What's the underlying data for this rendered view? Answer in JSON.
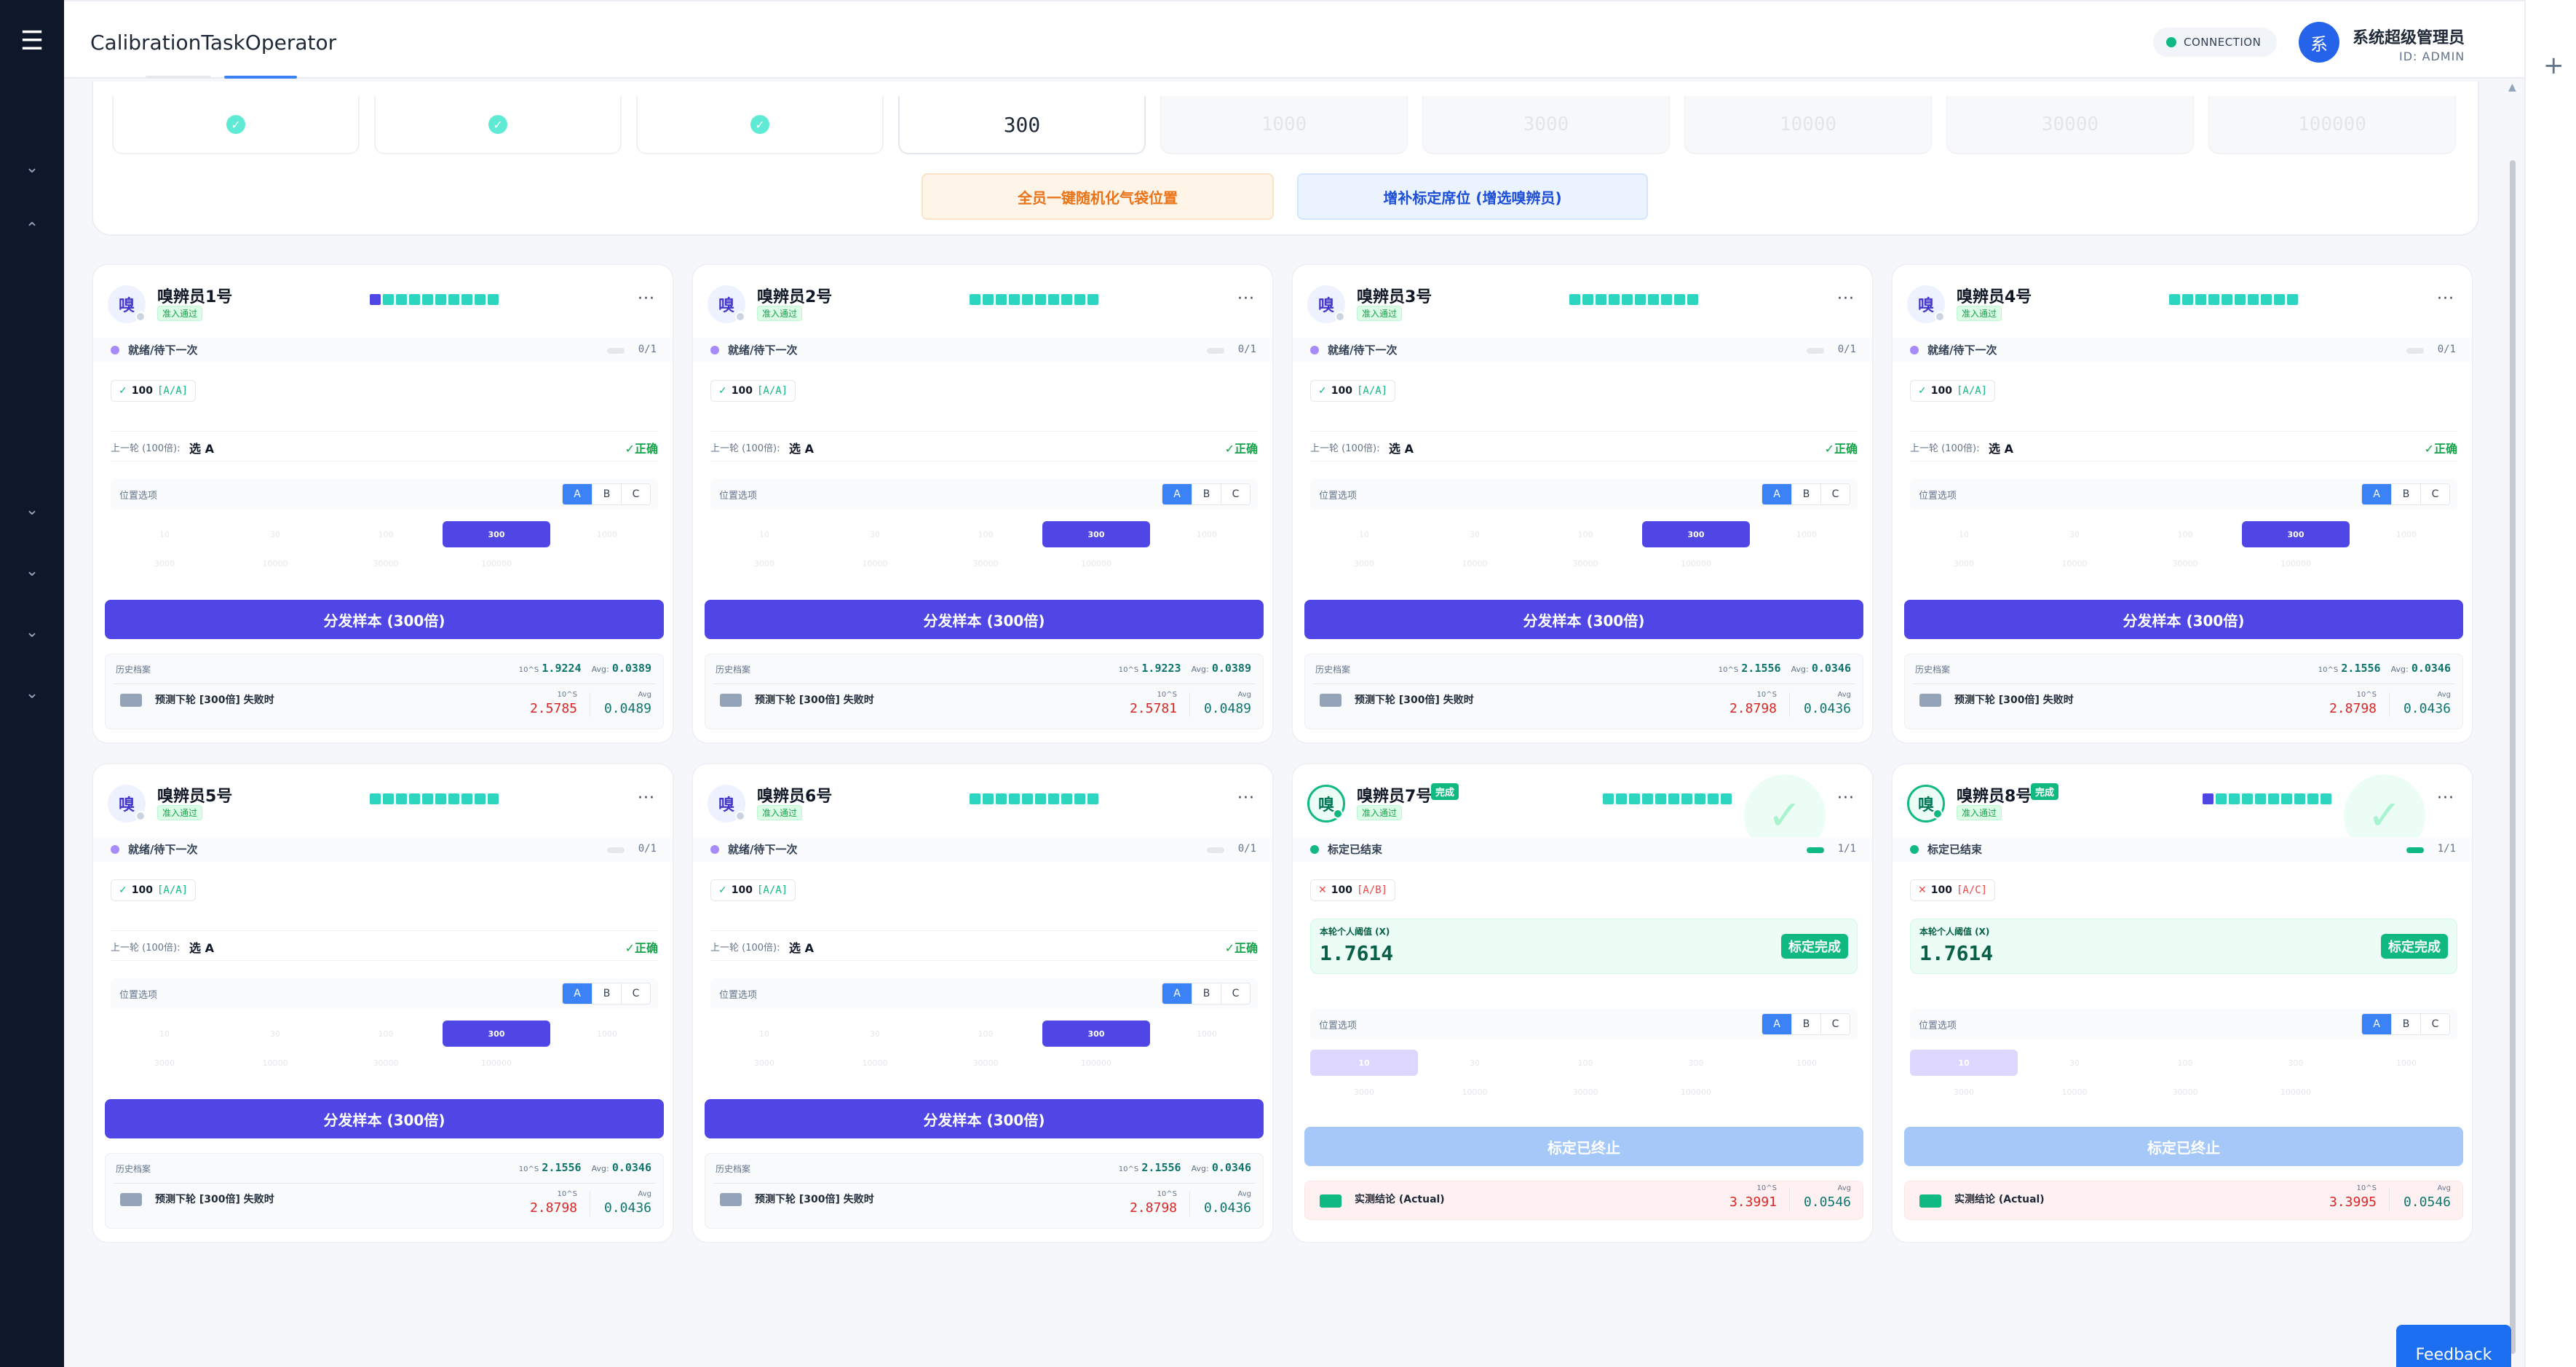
{
  "app": {
    "title": "CalibrationTaskOperator"
  },
  "header": {
    "connection": "CONNECTION",
    "user_avatar": "系",
    "user_name": "系统超级管理员",
    "user_id": "ID: ADMIN"
  },
  "steps": {
    "active": "300",
    "dim": [
      "1000",
      "3000",
      "10000",
      "30000",
      "100000"
    ]
  },
  "actions": {
    "randomize": "全员一键随机化气袋位置",
    "add_seat": "增补标定席位 (增选嗅辨员)"
  },
  "labels": {
    "prev_round": "上一轮 (100倍):",
    "position": "位置选项",
    "history": "历史档案",
    "predict": "预测下轮 [300倍] 失败时",
    "tenS": "10^S",
    "avg": "Avg:",
    "avg2": "Avg",
    "threshold": "本轮个人阈值 (X)",
    "actual": "实测结论 (Actual)",
    "calibrated": "标定完成",
    "done_tag": "完成",
    "stopped": "标定已终止",
    "pass": "准入通过",
    "more": "···",
    "check": "✓",
    "cross": "✕"
  },
  "multipliers": {
    "row1": [
      "10",
      "30",
      "100",
      "300",
      "1000"
    ],
    "row2": [
      "3000",
      "10000",
      "30000",
      "100000"
    ]
  },
  "panelists": [
    {
      "name": "嗅辨员1号",
      "status": "就绪/待下一次",
      "progress": "0/1",
      "result_val": "100",
      "result_pair": "[A/A]",
      "prev_pick": "选 A",
      "prev_ok": "✓正确",
      "dispatch": "分发样本 (300倍)",
      "hist_10s": "1.9224",
      "hist_avg": "0.0389",
      "pred_10s": "2.5785",
      "pred_avg": "0.0489",
      "avatar": "嗅"
    },
    {
      "name": "嗅辨员2号",
      "status": "就绪/待下一次",
      "progress": "0/1",
      "result_val": "100",
      "result_pair": "[A/A]",
      "prev_pick": "选 A",
      "prev_ok": "✓正确",
      "dispatch": "分发样本 (300倍)",
      "hist_10s": "1.9223",
      "hist_avg": "0.0389",
      "pred_10s": "2.5781",
      "pred_avg": "0.0489",
      "avatar": "嗅"
    },
    {
      "name": "嗅辨员3号",
      "status": "就绪/待下一次",
      "progress": "0/1",
      "result_val": "100",
      "result_pair": "[A/A]",
      "prev_pick": "选 A",
      "prev_ok": "✓正确",
      "dispatch": "分发样本 (300倍)",
      "hist_10s": "2.1556",
      "hist_avg": "0.0346",
      "pred_10s": "2.8798",
      "pred_avg": "0.0436",
      "avatar": "嗅"
    },
    {
      "name": "嗅辨员4号",
      "status": "就绪/待下一次",
      "progress": "0/1",
      "result_val": "100",
      "result_pair": "[A/A]",
      "prev_pick": "选 A",
      "prev_ok": "✓正确",
      "dispatch": "分发样本 (300倍)",
      "hist_10s": "2.1556",
      "hist_avg": "0.0346",
      "pred_10s": "2.8798",
      "pred_avg": "0.0436",
      "avatar": "嗅"
    },
    {
      "name": "嗅辨员5号",
      "status": "就绪/待下一次",
      "progress": "0/1",
      "result_val": "100",
      "result_pair": "[A/A]",
      "prev_pick": "选 A",
      "prev_ok": "✓正确",
      "dispatch": "分发样本 (300倍)",
      "hist_10s": "2.1556",
      "hist_avg": "0.0346",
      "pred_10s": "2.8798",
      "pred_avg": "0.0436",
      "avatar": "嗅"
    },
    {
      "name": "嗅辨员6号",
      "status": "就绪/待下一次",
      "progress": "0/1",
      "result_val": "100",
      "result_pair": "[A/A]",
      "prev_pick": "选 A",
      "prev_ok": "✓正确",
      "dispatch": "分发样本 (300倍)",
      "hist_10s": "2.1556",
      "hist_avg": "0.0346",
      "pred_10s": "2.8798",
      "pred_avg": "0.0436",
      "avatar": "嗅"
    },
    {
      "name": "嗅辨员7号",
      "status": "标定已结束",
      "progress": "1/1",
      "result_val": "100",
      "result_pair": "[A/B]",
      "threshold": "1.7614",
      "actual_10s": "3.3991",
      "actual_avg": "0.0546",
      "avatar": "嗅"
    },
    {
      "name": "嗅辨员8号",
      "status": "标定已结束",
      "progress": "1/1",
      "result_val": "100",
      "result_pair": "[A/C]",
      "threshold": "1.7614",
      "actual_10s": "3.3995",
      "actual_avg": "0.0546",
      "avatar": "嗅"
    }
  ],
  "feedback": "Feedback"
}
